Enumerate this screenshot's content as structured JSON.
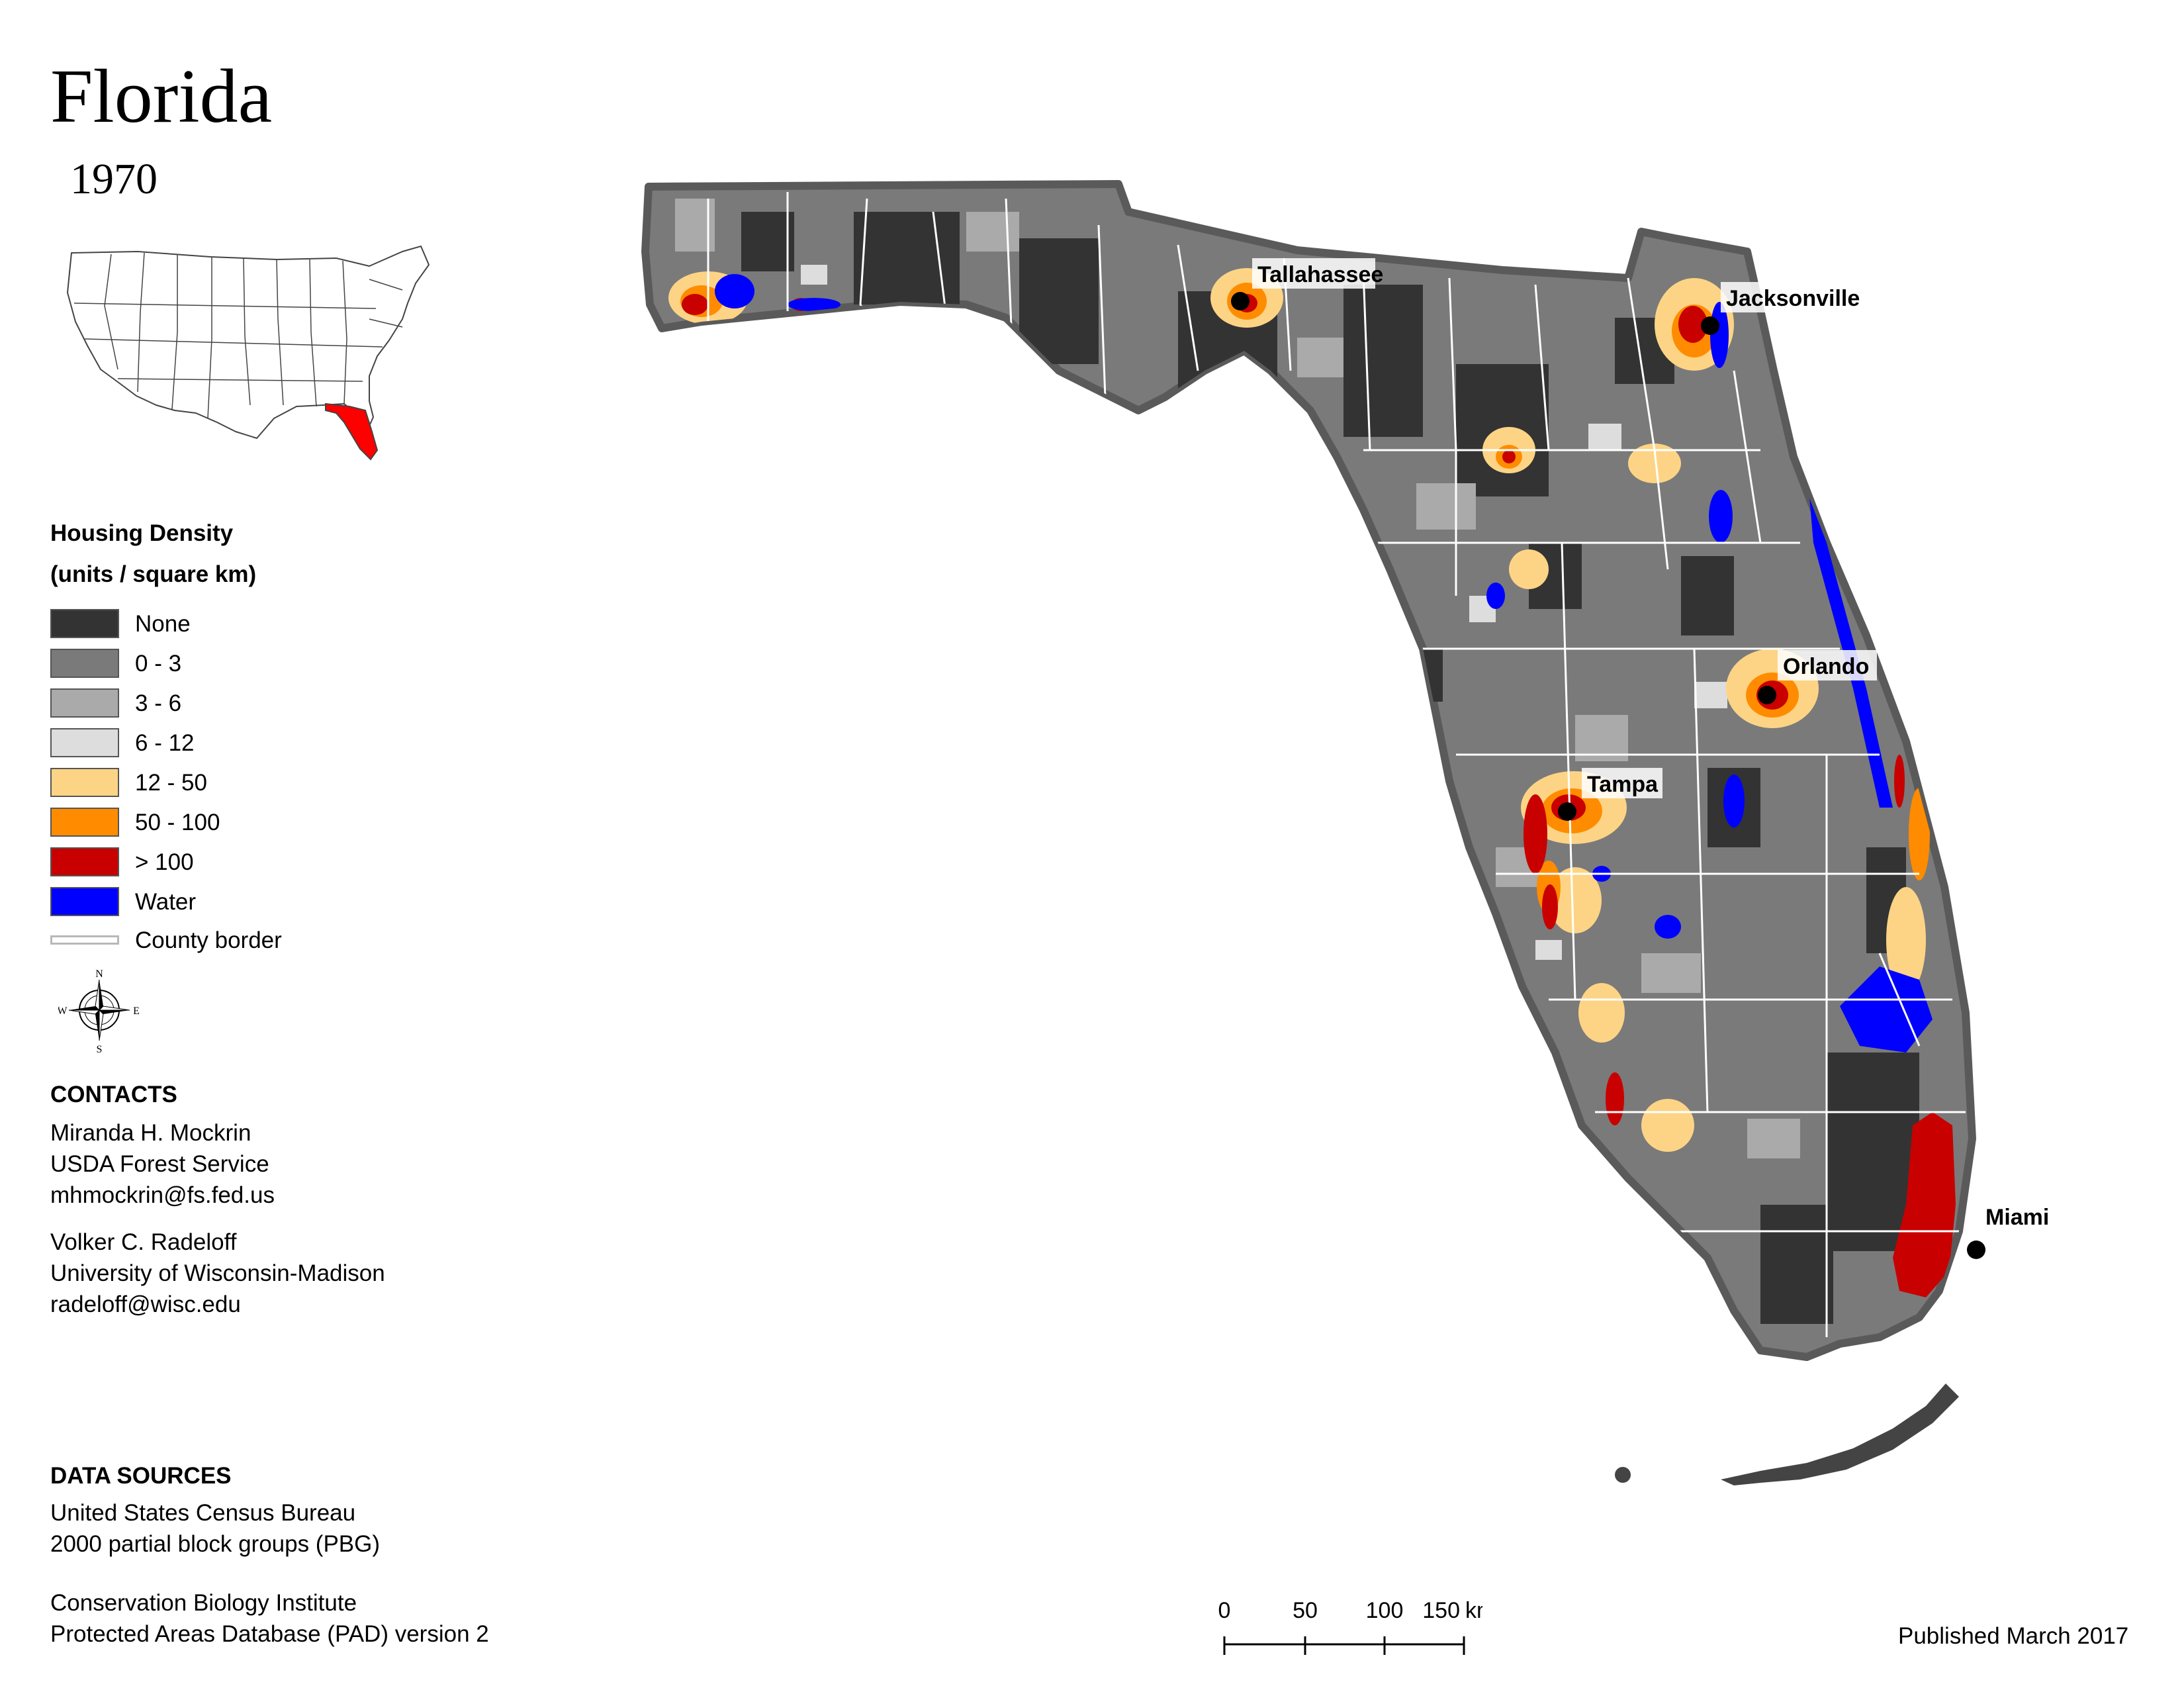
{
  "header": {
    "title": "Florida",
    "year": "1970"
  },
  "legend": {
    "title_line1": "Housing Density",
    "title_line2": "(units / square km)",
    "items": [
      {
        "label": "None",
        "color": "#333333"
      },
      {
        "label": "0 - 3",
        "color": "#7a7a7a"
      },
      {
        "label": "3 - 6",
        "color": "#aaaaaa"
      },
      {
        "label": "6 - 12",
        "color": "#dddddd"
      },
      {
        "label": "12 - 50",
        "color": "#fdd485"
      },
      {
        "label": "50 - 100",
        "color": "#ff8c00"
      },
      {
        "label": "> 100",
        "color": "#c80000"
      },
      {
        "label": "Water",
        "color": "#0000ff"
      }
    ],
    "county_border_label": "County border"
  },
  "compass": {
    "n": "N",
    "s": "S",
    "e": "E",
    "w": "W"
  },
  "contacts": {
    "heading": "CONTACTS",
    "person1": {
      "name": "Miranda H. Mockrin",
      "org": "USDA Forest Service",
      "email": "mhmockrin@fs.fed.us"
    },
    "person2": {
      "name": "Volker C. Radeloff",
      "org": "University of Wisconsin-Madison",
      "email": "radeloff@wisc.edu"
    }
  },
  "data_sources": {
    "heading": "DATA SOURCES",
    "lines": [
      "United States Census Bureau",
      "2000 partial block groups (PBG)",
      "Conservation Biology Institute",
      "Protected Areas Database (PAD) version 2"
    ]
  },
  "scale": {
    "ticks": [
      "0",
      "50",
      "100",
      "150"
    ],
    "unit": "km"
  },
  "published": "Published March 2017",
  "cities": [
    "Tallahassee",
    "Jacksonville",
    "Orlando",
    "Tampa",
    "Miami"
  ],
  "inset_highlight_color": "#ff0000"
}
